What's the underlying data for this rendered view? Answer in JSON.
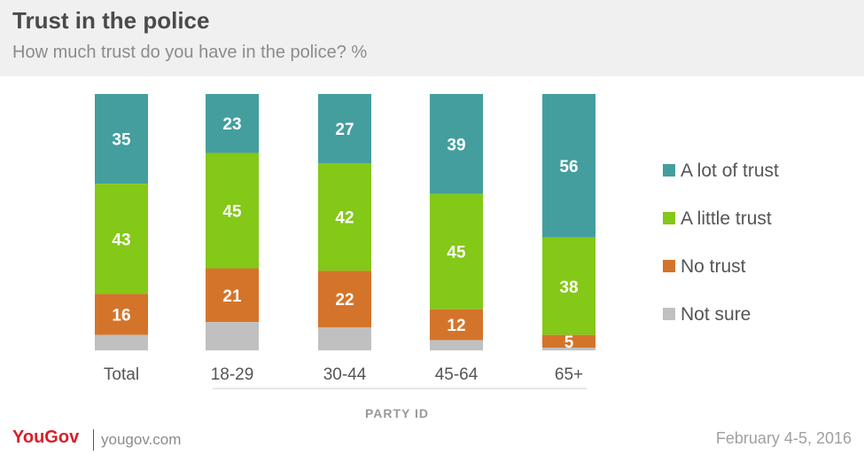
{
  "title": "Trust in the police",
  "subtitle": "How much trust do you have in the police? %",
  "group_label": "PARTY ID",
  "footer": {
    "brand": "YouGov",
    "site": "yougov.com",
    "date": "February 4-5, 2016"
  },
  "colors": {
    "a_lot": "#449e9e",
    "a_little": "#84c818",
    "no_trust": "#d4742a",
    "not_sure": "#c0c0c0"
  },
  "chart_data": {
    "type": "bar",
    "stacked": true,
    "title": "Trust in the police",
    "subtitle": "How much trust do you have in the police? %",
    "categories": [
      "Total",
      "18-29",
      "30-44",
      "45-64",
      "65+"
    ],
    "series": [
      {
        "name": "A lot of trust",
        "values": [
          35,
          23,
          27,
          39,
          56
        ]
      },
      {
        "name": "A little trust",
        "values": [
          43,
          45,
          42,
          45,
          38
        ]
      },
      {
        "name": "No trust",
        "values": [
          16,
          21,
          22,
          12,
          5
        ]
      },
      {
        "name": "Not sure",
        "values": [
          6,
          11,
          9,
          4,
          1
        ]
      }
    ],
    "show_value_labels_for": [
      "A lot of trust",
      "A little trust",
      "No trust"
    ],
    "legend_position": "right",
    "ylim": [
      0,
      100
    ],
    "grid": false
  }
}
